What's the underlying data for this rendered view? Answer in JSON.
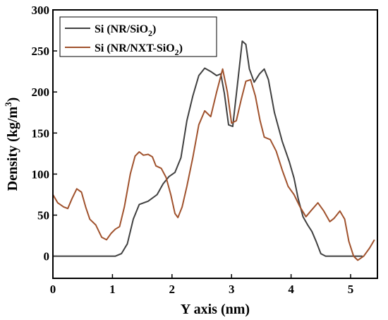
{
  "chart_data": {
    "type": "line",
    "xlabel": "Y axis (nm)",
    "ylabel_main": "Density (kg/m",
    "ylabel_sup": "3",
    "ylabel_close": ")",
    "xlim": [
      0,
      5.45
    ],
    "ylim": [
      -27,
      300
    ],
    "x_ticks": [
      0,
      1,
      2,
      3,
      4,
      5
    ],
    "y_ticks": [
      0,
      50,
      100,
      150,
      200,
      250,
      300
    ],
    "legend_position": "top-left",
    "series": [
      {
        "name_main": "Si (NR/SiO",
        "name_sub": "2",
        "name_close": ")",
        "color": "#404040",
        "points": [
          [
            0,
            0
          ],
          [
            0.5,
            0
          ],
          [
            0.9,
            0
          ],
          [
            1.05,
            0
          ],
          [
            1.15,
            3
          ],
          [
            1.25,
            15
          ],
          [
            1.35,
            45
          ],
          [
            1.45,
            63
          ],
          [
            1.6,
            67
          ],
          [
            1.75,
            75
          ],
          [
            1.85,
            88
          ],
          [
            1.95,
            97
          ],
          [
            2.05,
            102
          ],
          [
            2.15,
            120
          ],
          [
            2.25,
            165
          ],
          [
            2.35,
            195
          ],
          [
            2.45,
            220
          ],
          [
            2.55,
            229
          ],
          [
            2.65,
            225
          ],
          [
            2.75,
            220
          ],
          [
            2.82,
            222
          ],
          [
            2.88,
            198
          ],
          [
            2.95,
            160
          ],
          [
            3.02,
            158
          ],
          [
            3.1,
            210
          ],
          [
            3.18,
            262
          ],
          [
            3.24,
            258
          ],
          [
            3.3,
            228
          ],
          [
            3.38,
            212
          ],
          [
            3.47,
            222
          ],
          [
            3.55,
            228
          ],
          [
            3.62,
            215
          ],
          [
            3.72,
            175
          ],
          [
            3.85,
            140
          ],
          [
            3.97,
            115
          ],
          [
            4.05,
            95
          ],
          [
            4.12,
            70
          ],
          [
            4.2,
            48
          ],
          [
            4.28,
            38
          ],
          [
            4.35,
            30
          ],
          [
            4.42,
            18
          ],
          [
            4.5,
            3
          ],
          [
            4.58,
            0
          ],
          [
            4.7,
            0
          ],
          [
            4.9,
            0
          ],
          [
            5.2,
            0
          ]
        ]
      },
      {
        "name_main": "Si (NR/NXT-SiO",
        "name_sub": "2",
        "name_close": ")",
        "color": "#a0522d",
        "points": [
          [
            0,
            75
          ],
          [
            0.08,
            65
          ],
          [
            0.18,
            60
          ],
          [
            0.25,
            58
          ],
          [
            0.32,
            70
          ],
          [
            0.4,
            82
          ],
          [
            0.48,
            78
          ],
          [
            0.55,
            60
          ],
          [
            0.62,
            45
          ],
          [
            0.72,
            38
          ],
          [
            0.82,
            23
          ],
          [
            0.9,
            20
          ],
          [
            0.98,
            28
          ],
          [
            1.05,
            33
          ],
          [
            1.12,
            36
          ],
          [
            1.2,
            60
          ],
          [
            1.3,
            100
          ],
          [
            1.38,
            122
          ],
          [
            1.45,
            127
          ],
          [
            1.52,
            123
          ],
          [
            1.6,
            124
          ],
          [
            1.67,
            121
          ],
          [
            1.73,
            110
          ],
          [
            1.82,
            107
          ],
          [
            1.9,
            96
          ],
          [
            1.98,
            75
          ],
          [
            2.05,
            52
          ],
          [
            2.1,
            47
          ],
          [
            2.17,
            60
          ],
          [
            2.25,
            85
          ],
          [
            2.35,
            120
          ],
          [
            2.45,
            160
          ],
          [
            2.55,
            177
          ],
          [
            2.65,
            170
          ],
          [
            2.75,
            200
          ],
          [
            2.85,
            228
          ],
          [
            2.93,
            200
          ],
          [
            3.0,
            162
          ],
          [
            3.08,
            165
          ],
          [
            3.16,
            190
          ],
          [
            3.24,
            213
          ],
          [
            3.32,
            215
          ],
          [
            3.4,
            195
          ],
          [
            3.48,
            165
          ],
          [
            3.55,
            145
          ],
          [
            3.65,
            142
          ],
          [
            3.75,
            128
          ],
          [
            3.85,
            105
          ],
          [
            3.95,
            85
          ],
          [
            4.05,
            75
          ],
          [
            4.15,
            60
          ],
          [
            4.25,
            48
          ],
          [
            4.33,
            55
          ],
          [
            4.45,
            65
          ],
          [
            4.55,
            55
          ],
          [
            4.65,
            42
          ],
          [
            4.72,
            46
          ],
          [
            4.82,
            55
          ],
          [
            4.9,
            45
          ],
          [
            4.97,
            18
          ],
          [
            5.05,
            0
          ],
          [
            5.12,
            -5
          ],
          [
            5.22,
            0
          ],
          [
            5.32,
            10
          ],
          [
            5.4,
            20
          ]
        ]
      }
    ]
  }
}
